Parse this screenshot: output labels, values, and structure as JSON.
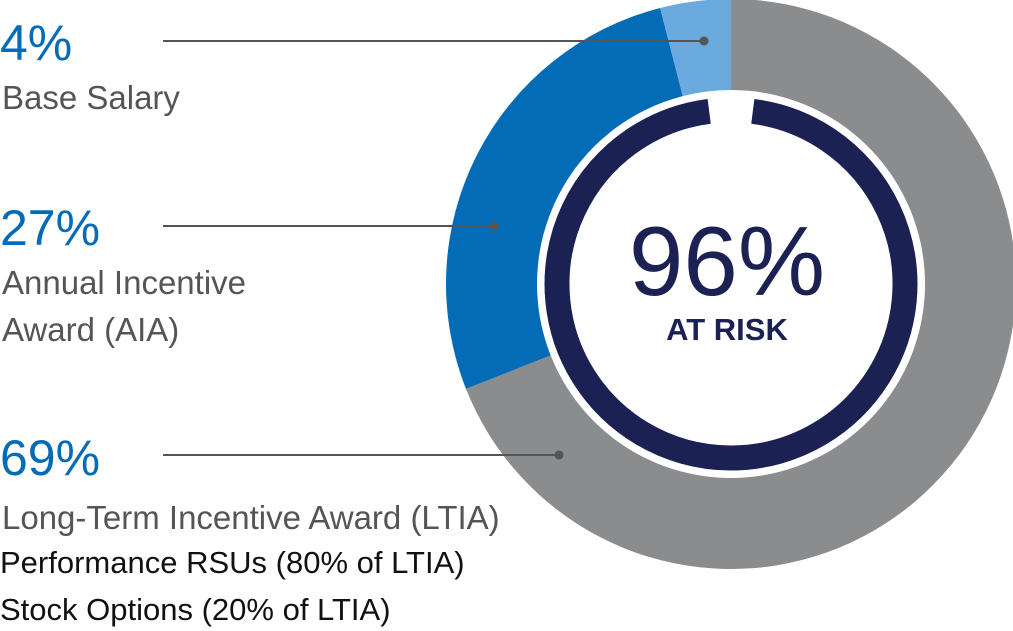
{
  "colors": {
    "base_salary": "#6aaadf",
    "aia": "#046cb7",
    "ltia": "#8b8c8e",
    "inner_ring": "#1c2153",
    "pct_text": "#046cb7",
    "connector": "#555555"
  },
  "chart_data": {
    "type": "pie",
    "title": "",
    "slices": [
      {
        "name": "Base Salary",
        "value": 4,
        "label": "4%"
      },
      {
        "name": "Annual Incentive Award (AIA)",
        "value": 27,
        "label": "27%"
      },
      {
        "name": "Long-Term Incentive Award (LTIA)",
        "value": 69,
        "label": "69%"
      }
    ],
    "center": {
      "value": "96%",
      "caption": "AT RISK",
      "fraction_at_risk": 0.96
    }
  },
  "legend": {
    "base_salary": {
      "pct": "4%",
      "label": "Base Salary"
    },
    "aia": {
      "pct": "27%",
      "label_line1": "Annual Incentive",
      "label_line2": "Award (AIA)"
    },
    "ltia": {
      "pct": "69%",
      "label": "Long-Term Incentive Award (LTIA)",
      "sub1": "Performance RSUs (80% of LTIA)",
      "sub2": "Stock Options (20% of LTIA)"
    }
  }
}
